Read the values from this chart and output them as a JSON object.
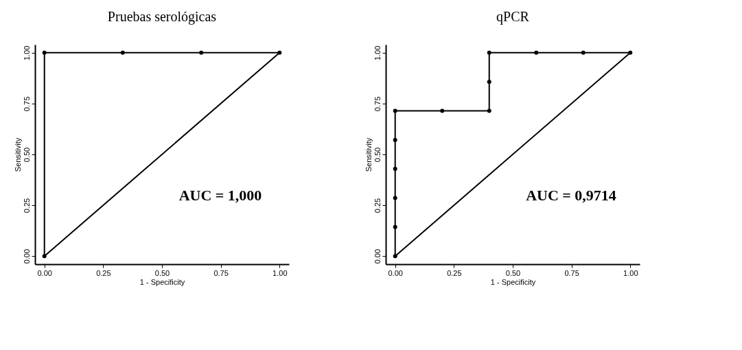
{
  "chart_data": [
    {
      "type": "line",
      "title": "Pruebas serológicas",
      "xlabel": "1 - Specificity",
      "ylabel": "Sensitivity",
      "xlim": [
        -0.04,
        1.04
      ],
      "ylim": [
        -0.04,
        1.04
      ],
      "xticks": [
        {
          "value": 0,
          "label": "0.00"
        },
        {
          "value": 0.25,
          "label": "0.25"
        },
        {
          "value": 0.5,
          "label": "0.50"
        },
        {
          "value": 0.75,
          "label": "0.75"
        },
        {
          "value": 1,
          "label": "1.00"
        }
      ],
      "yticks": [
        {
          "value": 0,
          "label": "0.00"
        },
        {
          "value": 0.25,
          "label": "0.25"
        },
        {
          "value": 0.5,
          "label": "0.50"
        },
        {
          "value": 0.75,
          "label": "0.75"
        },
        {
          "value": 1,
          "label": "1.00"
        }
      ],
      "line_style": "solid",
      "series": [
        {
          "color": "#000000",
          "marker": "circle",
          "x": [
            0,
            0,
            0.333,
            0.667,
            1
          ],
          "values": [
            0,
            1,
            1,
            1,
            1
          ]
        },
        {
          "color": "#000000",
          "marker": "none",
          "x": [
            0,
            1
          ],
          "values": [
            0,
            1
          ]
        }
      ],
      "annotations": [
        "AUC = 1,000"
      ]
    },
    {
      "type": "line",
      "title": "qPCR",
      "xlabel": "1 - Specificity",
      "ylabel": "Sensitivity",
      "xlim": [
        -0.04,
        1.04
      ],
      "ylim": [
        -0.04,
        1.04
      ],
      "xticks": [
        {
          "value": 0,
          "label": "0.00"
        },
        {
          "value": 0.25,
          "label": "0.25"
        },
        {
          "value": 0.5,
          "label": "0.50"
        },
        {
          "value": 0.75,
          "label": "0.75"
        },
        {
          "value": 1,
          "label": "1.00"
        }
      ],
      "yticks": [
        {
          "value": 0,
          "label": "0.00"
        },
        {
          "value": 0.25,
          "label": "0.25"
        },
        {
          "value": 0.5,
          "label": "0.50"
        },
        {
          "value": 0.75,
          "label": "0.75"
        },
        {
          "value": 1,
          "label": "1.00"
        }
      ],
      "line_style": "solid",
      "series": [
        {
          "color": "#000000",
          "marker": "circle",
          "x": [
            0,
            0,
            0,
            0,
            0,
            0,
            0.2,
            0.4,
            0.4,
            0.4,
            0.6,
            0.8,
            1
          ],
          "values": [
            0,
            0.143,
            0.286,
            0.429,
            0.571,
            0.714,
            0.714,
            0.714,
            0.857,
            1,
            1,
            1,
            1
          ]
        },
        {
          "color": "#000000",
          "marker": "none",
          "x": [
            0,
            1
          ],
          "values": [
            0,
            1
          ]
        }
      ],
      "annotations": [
        "AUC = 0,9714"
      ]
    }
  ]
}
